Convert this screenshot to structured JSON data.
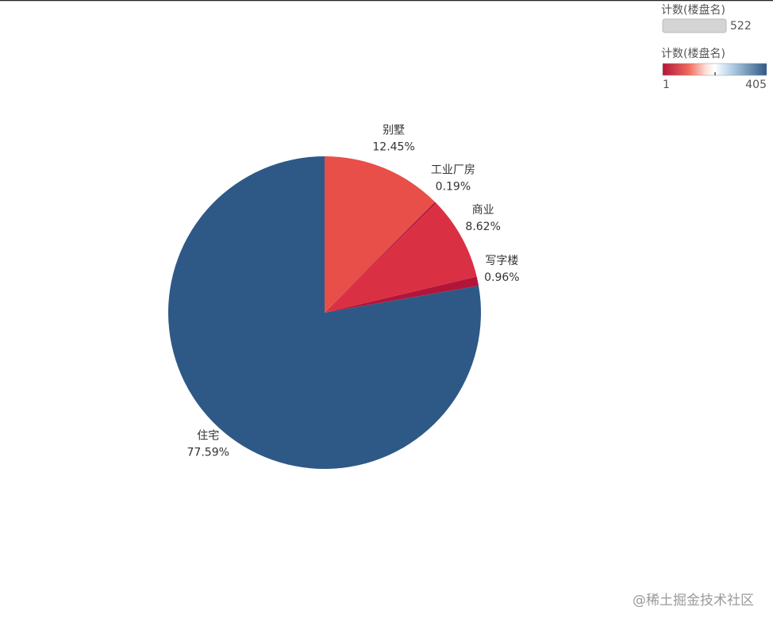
{
  "chart_data": {
    "type": "pie",
    "categories": [
      "别墅",
      "工业厂房",
      "商业",
      "写字楼",
      "住宅"
    ],
    "values": [
      12.45,
      0.19,
      8.62,
      0.96,
      77.59
    ],
    "value_labels": [
      "12.45%",
      "0.19%",
      "8.62%",
      "0.96%",
      "77.59%"
    ],
    "colors": [
      "#e84f49",
      "#b8163b",
      "#d93143",
      "#b3153a",
      "#2e5986"
    ],
    "legends": [
      {
        "title": "计数(楼盘名)",
        "max": 522
      },
      {
        "title": "计数(楼盘名)",
        "min": 1,
        "max": 405
      }
    ]
  },
  "watermark": "@稀土掘金技术社区"
}
